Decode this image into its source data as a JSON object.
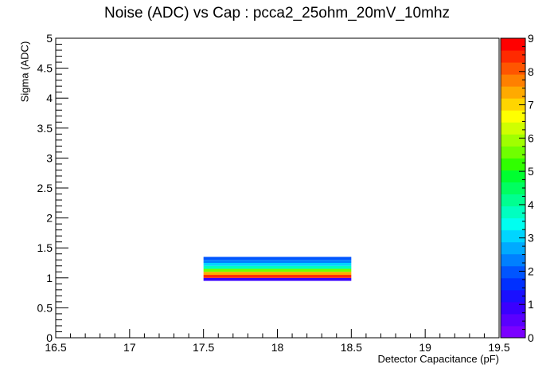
{
  "chart_data": {
    "type": "heatmap",
    "title": "Noise (ADC) vs Cap : pcca2_25ohm_20mV_10mhz",
    "xlabel": "Detector Capacitance (pF)",
    "ylabel": "Sigma (ADC)",
    "xlim": [
      16.5,
      19.5
    ],
    "ylim": [
      0,
      5
    ],
    "x_ticks": [
      "16.5",
      "17",
      "17.5",
      "18",
      "18.5",
      "19",
      "19.5"
    ],
    "y_ticks": [
      "0",
      "0.5",
      "1",
      "1.5",
      "2",
      "2.5",
      "3",
      "3.5",
      "4",
      "4.5",
      "5"
    ],
    "z_range": [
      0,
      9
    ],
    "z_ticks": [
      "0",
      "1",
      "2",
      "3",
      "4",
      "5",
      "6",
      "7",
      "8",
      "9"
    ],
    "palette": [
      "#7b00ff",
      "#5a00ff",
      "#3a00ff",
      "#1a10ff",
      "#0030ff",
      "#0055ff",
      "#0080ff",
      "#00aaff",
      "#00d5ff",
      "#00fff0",
      "#00ffc0",
      "#00ff90",
      "#00ff60",
      "#00ff30",
      "#30ff00",
      "#70ff00",
      "#a0ff00",
      "#d0ff00",
      "#ffff00",
      "#ffd500",
      "#ffaa00",
      "#ff8000",
      "#ff5500",
      "#ff2a00",
      "#ff0000"
    ],
    "cells": [
      {
        "x0": 17.5,
        "x1": 18.5,
        "y0": 0.95,
        "y1": 1.0,
        "z": 1.0
      },
      {
        "x0": 17.5,
        "x1": 18.5,
        "y0": 1.0,
        "y1": 1.05,
        "z": 8.6
      },
      {
        "x0": 17.5,
        "x1": 18.5,
        "y0": 1.05,
        "y1": 1.1,
        "z": 7.4
      },
      {
        "x0": 17.5,
        "x1": 18.5,
        "y0": 1.1,
        "y1": 1.15,
        "z": 5.7
      },
      {
        "x0": 17.5,
        "x1": 18.5,
        "y0": 1.15,
        "y1": 1.2,
        "z": 3.6
      },
      {
        "x0": 17.5,
        "x1": 18.5,
        "y0": 1.2,
        "y1": 1.25,
        "z": 3.0
      },
      {
        "x0": 17.5,
        "x1": 18.5,
        "y0": 1.25,
        "y1": 1.3,
        "z": 2.4
      },
      {
        "x0": 17.5,
        "x1": 18.5,
        "y0": 1.3,
        "y1": 1.35,
        "z": 1.9
      }
    ]
  }
}
